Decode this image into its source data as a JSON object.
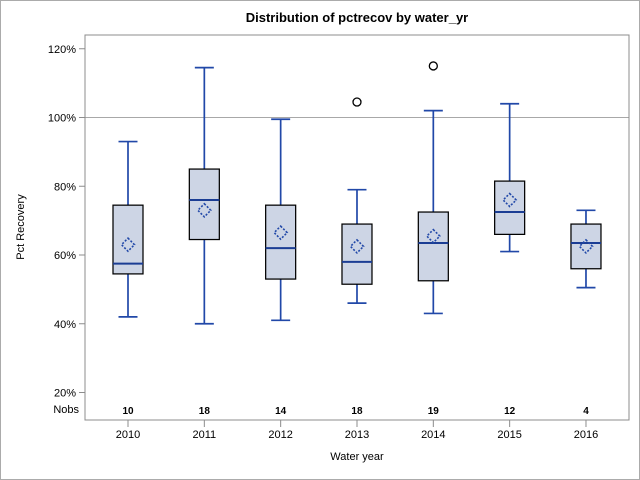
{
  "chart_data": {
    "type": "boxplot",
    "title": "Distribution of pctrecov by water_yr",
    "xlabel": "Water year",
    "ylabel": "Pct Recovery",
    "nobs_label": "Nobs",
    "ylim": [
      12,
      124
    ],
    "y_tick_values": [
      120,
      100,
      80,
      60,
      40,
      20
    ],
    "y_ticks": [
      "120%",
      "100%",
      "80%",
      "60%",
      "40%",
      "20%"
    ],
    "reference_line_value": 100,
    "grid": "reference line at 100% only",
    "legend": "none",
    "categories": [
      "2010",
      "2011",
      "2012",
      "2013",
      "2014",
      "2015",
      "2016"
    ],
    "nobs": [
      10,
      18,
      14,
      18,
      19,
      12,
      4
    ],
    "series": [
      {
        "year": "2010",
        "n": 10,
        "min": 42,
        "q1": 54.5,
        "median": 57.5,
        "q3": 74.5,
        "max": 93,
        "mean": 63,
        "outliers": []
      },
      {
        "year": "2011",
        "n": 18,
        "min": 40,
        "q1": 64.5,
        "median": 76,
        "q3": 85,
        "max": 114.5,
        "mean": 73,
        "outliers": []
      },
      {
        "year": "2012",
        "n": 14,
        "min": 41,
        "q1": 53,
        "median": 62,
        "q3": 74.5,
        "max": 99.5,
        "mean": 66.5,
        "outliers": []
      },
      {
        "year": "2013",
        "n": 18,
        "min": 46,
        "q1": 51.5,
        "median": 58,
        "q3": 69,
        "max": 79,
        "mean": 62.5,
        "outliers": [
          104.5
        ]
      },
      {
        "year": "2014",
        "n": 19,
        "min": 43,
        "q1": 52.5,
        "median": 63.5,
        "q3": 72.5,
        "max": 102,
        "mean": 65.5,
        "outliers": [
          115
        ]
      },
      {
        "year": "2015",
        "n": 12,
        "min": 61,
        "q1": 66,
        "median": 72.5,
        "q3": 81.5,
        "max": 104,
        "mean": 76,
        "outliers": []
      },
      {
        "year": "2016",
        "n": 4,
        "min": 50.5,
        "q1": 56,
        "median": 63.5,
        "q3": 69,
        "max": 73,
        "mean": 62.5,
        "outliers": []
      }
    ],
    "colors": {
      "box_fill": "#cdd5e5",
      "box_border": "#000000",
      "whisker": "#2148a8",
      "median_line": "#1b3d94",
      "mean_marker": "#2148a8",
      "outlier_stroke": "#000000",
      "reference_line": "#a8a8a8",
      "axis_frame": "#8c8c8c",
      "text": "#000000",
      "background": "#ffffff"
    }
  }
}
